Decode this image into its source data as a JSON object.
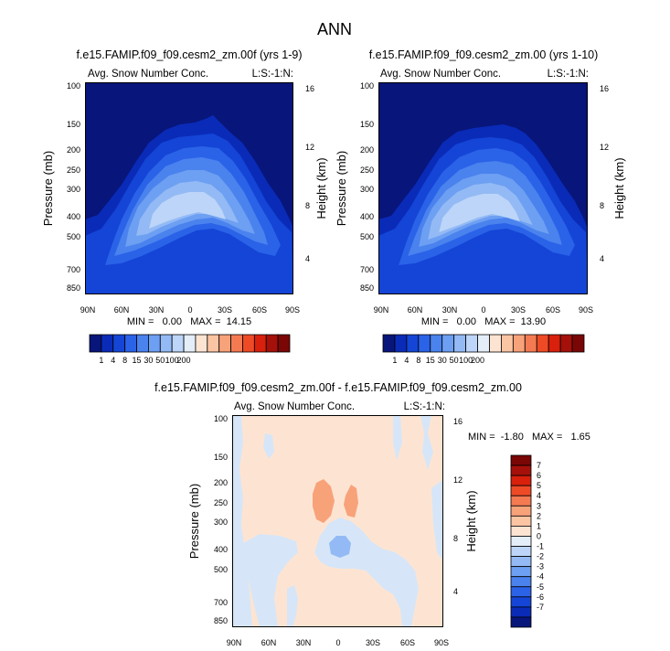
{
  "main_title": "ANN",
  "colors": {
    "blues": [
      "#08157a",
      "#0a2bb8",
      "#1445d6",
      "#2a62e8",
      "#4a82ee",
      "#6d9ff2",
      "#93baf5",
      "#bcd5f8",
      "#e4eef9"
    ],
    "reds": [
      "#fde4d2",
      "#fbc4a3",
      "#f8a27a",
      "#f47a52",
      "#ef4a26",
      "#d8200c",
      "#a5100a",
      "#7a0606"
    ],
    "panel_bg": "#08157a",
    "diff_pos": "#fde4d2",
    "diff_pos2": "#f8a27a",
    "diff_neg": "#d6e6f8",
    "diff_neg2": "#93baf5"
  },
  "chart_data": [
    {
      "type": "heatmap",
      "title": "f.e15.FAMIP.f09_f09.cesm2_zm.00f (yrs 1-9)",
      "left_label": "Avg. Snow Number Conc.",
      "right_label": "L:S:-1:N:",
      "ylabel": "Pressure (mb)",
      "ylabel_right": "Height (km)",
      "y_ticks": [
        "100",
        "150",
        "200",
        "250",
        "300",
        "400",
        "500",
        "700",
        "850"
      ],
      "y_right_ticks": [
        "16",
        "12",
        "8",
        "4"
      ],
      "x_ticks": [
        "90N",
        "60N",
        "30N",
        "0",
        "30S",
        "60S",
        "90S"
      ],
      "min_max": "MIN =   0.00   MAX =  14.15",
      "contour_levels": [
        1,
        4,
        8,
        15,
        30,
        50,
        100,
        200
      ]
    },
    {
      "type": "heatmap",
      "title": "f.e15.FAMIP.f09_f09.cesm2_zm.00 (yrs 1-10)",
      "left_label": "Avg. Snow Number Conc.",
      "right_label": "L:S:-1:N:",
      "ylabel": "Pressure (mb)",
      "ylabel_right": "Height (km)",
      "y_ticks": [
        "100",
        "150",
        "200",
        "250",
        "300",
        "400",
        "500",
        "700",
        "850"
      ],
      "y_right_ticks": [
        "16",
        "12",
        "8",
        "4"
      ],
      "x_ticks": [
        "90N",
        "60N",
        "30N",
        "0",
        "30S",
        "60S",
        "90S"
      ],
      "min_max": "MIN =   0.00   MAX =  13.90",
      "contour_levels": [
        1,
        4,
        8,
        15,
        30,
        50,
        100,
        200
      ]
    },
    {
      "type": "heatmap",
      "title": "f.e15.FAMIP.f09_f09.cesm2_zm.00f - f.e15.FAMIP.f09_f09.cesm2_zm.00",
      "left_label": "Avg. Snow Number Conc.",
      "right_label": "L:S:-1:N:",
      "ylabel": "Pressure (mb)",
      "ylabel_right": "Height (km)",
      "y_ticks": [
        "100",
        "150",
        "200",
        "250",
        "300",
        "400",
        "500",
        "700",
        "850"
      ],
      "y_right_ticks": [
        "16",
        "12",
        "8",
        "4"
      ],
      "x_ticks": [
        "90N",
        "60N",
        "30N",
        "0",
        "30S",
        "60S",
        "90S"
      ],
      "min_max": "MIN =  -1.80   MAX =   1.65",
      "contour_levels": [
        -7,
        -6,
        -5,
        -4,
        -3,
        -2,
        -1,
        0,
        1,
        2,
        3,
        4,
        5,
        6,
        7
      ]
    }
  ],
  "colorbar_labels": [
    "1",
    "4",
    "8",
    "15",
    "30",
    "50",
    "100",
    "200"
  ],
  "diff_colorbar_labels": [
    "7",
    "6",
    "5",
    "4",
    "3",
    "2",
    "1",
    "0",
    "-1",
    "-2",
    "-3",
    "-4",
    "-5",
    "-6",
    "-7"
  ]
}
